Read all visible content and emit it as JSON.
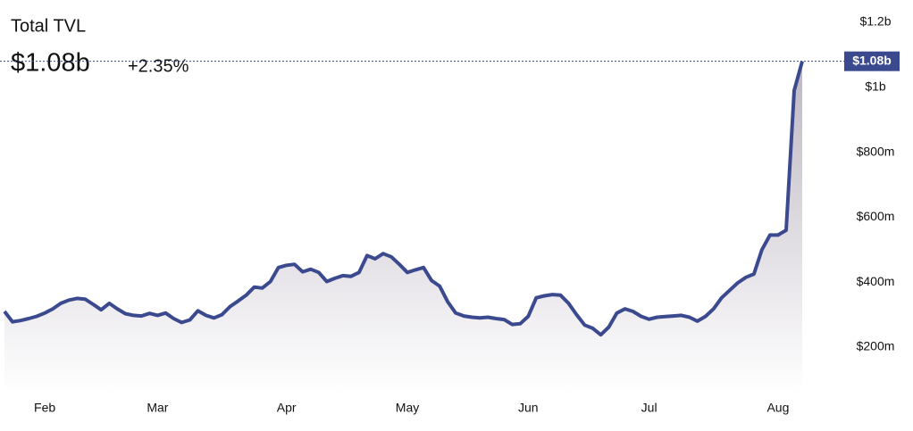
{
  "chart_data": {
    "type": "area-line",
    "title": "Total TVL",
    "headline": "$1.08b",
    "change": "+2.35%",
    "change_color": "#1a8a1a",
    "color": "#3b4a8f",
    "fill_top": "#bdb6c2",
    "grid": false,
    "ylim": [
      60,
      1200
    ],
    "yticks": [
      {
        "value": 200,
        "label": "$200m"
      },
      {
        "value": 400,
        "label": "$400m"
      },
      {
        "value": 600,
        "label": "$600m"
      },
      {
        "value": 800,
        "label": "$800m"
      },
      {
        "value": 1000,
        "label": "$1b"
      },
      {
        "value": 1200,
        "label": "$1.2b"
      }
    ],
    "categories": [
      null,
      null,
      null,
      null,
      null,
      "Feb",
      null,
      null,
      null,
      null,
      null,
      null,
      null,
      null,
      null,
      null,
      null,
      null,
      null,
      "Mar",
      null,
      null,
      null,
      null,
      null,
      null,
      null,
      null,
      null,
      null,
      null,
      null,
      null,
      null,
      null,
      "Apr",
      null,
      null,
      null,
      null,
      null,
      null,
      null,
      null,
      null,
      null,
      null,
      null,
      null,
      null,
      "May",
      null,
      null,
      null,
      null,
      null,
      null,
      null,
      null,
      null,
      null,
      null,
      null,
      null,
      null,
      "Jun",
      null,
      null,
      null,
      null,
      null,
      null,
      null,
      null,
      null,
      null,
      null,
      null,
      null,
      null,
      "Jul",
      null,
      null,
      null,
      null,
      null,
      null,
      null,
      null,
      null,
      null,
      null,
      null,
      null,
      null,
      null,
      "Aug",
      null,
      null,
      null
    ],
    "values": [
      310,
      278,
      282,
      288,
      295,
      305,
      318,
      335,
      345,
      350,
      348,
      332,
      315,
      335,
      318,
      303,
      298,
      296,
      304,
      298,
      305,
      288,
      276,
      284,
      312,
      298,
      290,
      300,
      325,
      342,
      360,
      385,
      382,
      402,
      445,
      452,
      455,
      432,
      440,
      430,
      402,
      412,
      420,
      418,
      430,
      482,
      472,
      488,
      478,
      455,
      430,
      438,
      445,
      405,
      388,
      340,
      305,
      296,
      292,
      290,
      292,
      288,
      285,
      270,
      272,
      295,
      352,
      358,
      362,
      360,
      335,
      300,
      268,
      258,
      238,
      262,
      305,
      318,
      310,
      295,
      286,
      292,
      294,
      296,
      298,
      292,
      280,
      295,
      318,
      352,
      375,
      398,
      415,
      425,
      500,
      545,
      545,
      560,
      990,
      1080
    ]
  }
}
